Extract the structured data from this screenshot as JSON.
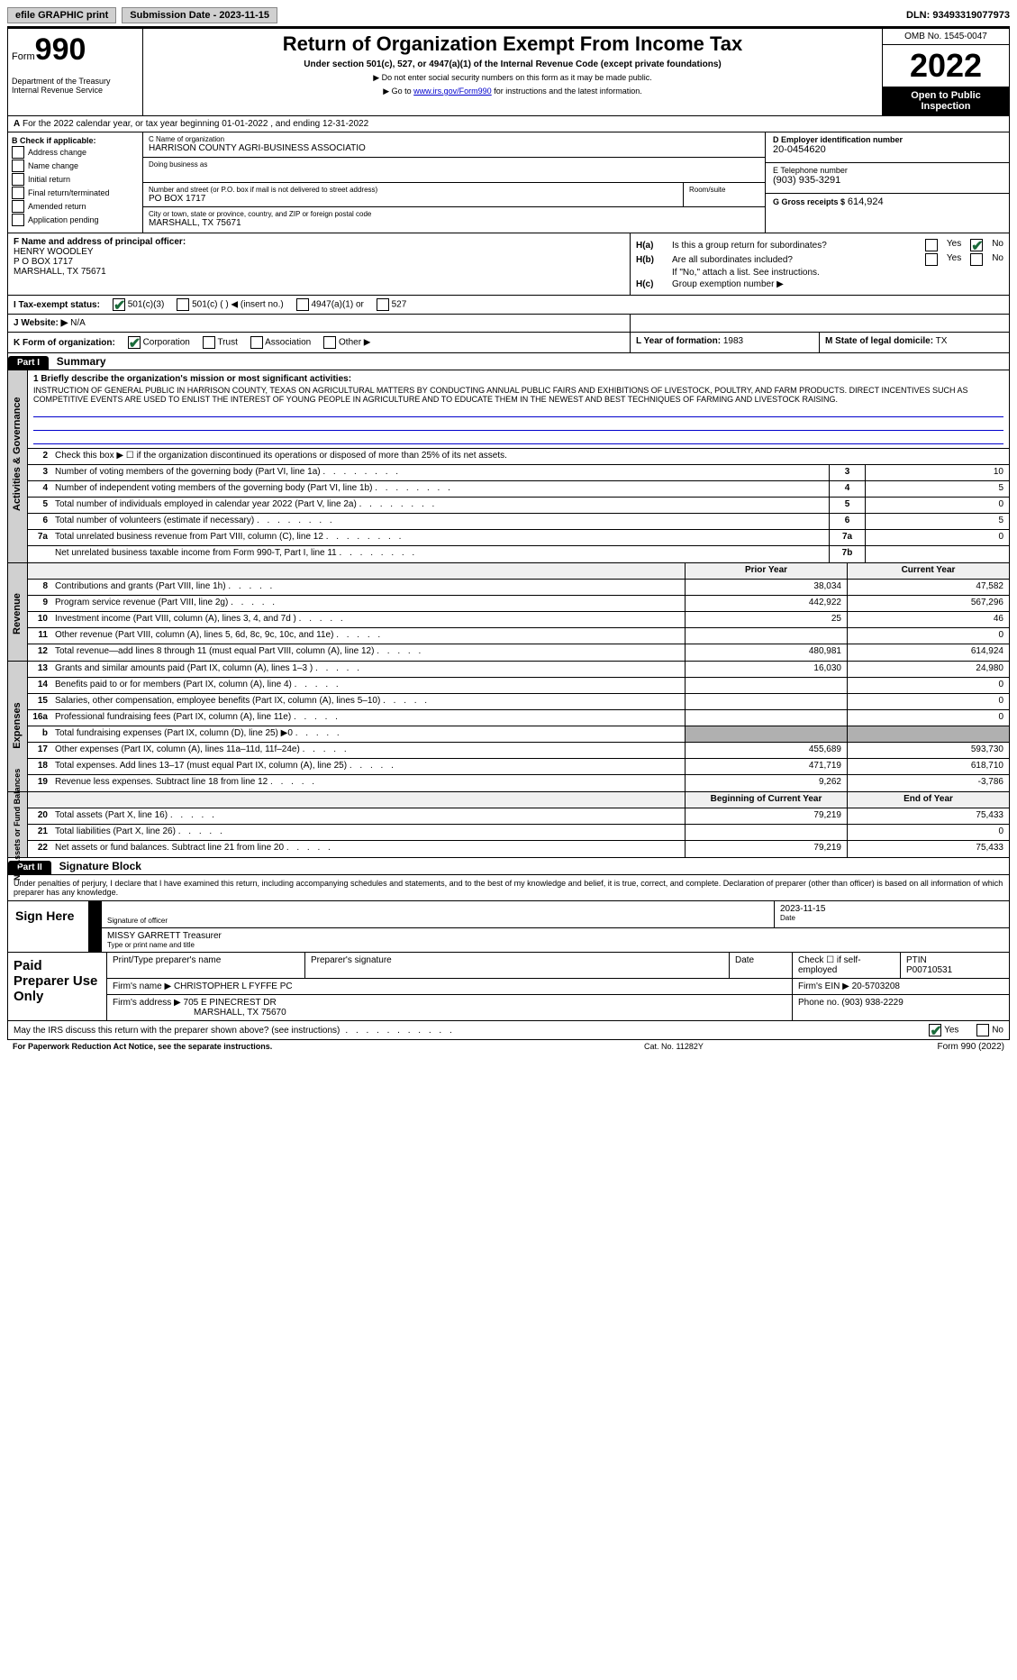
{
  "topbar": {
    "efile": "efile GRAPHIC print",
    "submission_label": "Submission Date - 2023-11-15",
    "dln_label": "DLN: 93493319077973"
  },
  "header": {
    "form_label": "Form",
    "form_num": "990",
    "dept": "Department of the Treasury\nInternal Revenue Service",
    "title": "Return of Organization Exempt From Income Tax",
    "subtitle": "Under section 501(c), 527, or 4947(a)(1) of the Internal Revenue Code (except private foundations)",
    "note1": "▶ Do not enter social security numbers on this form as it may be made public.",
    "note2_pre": "▶ Go to ",
    "note2_link": "www.irs.gov/Form990",
    "note2_post": " for instructions and the latest information.",
    "omb": "OMB No. 1545-0047",
    "year": "2022",
    "open": "Open to Public Inspection"
  },
  "row_a": {
    "label_a": "A",
    "text": "For the 2022 calendar year, or tax year beginning 01-01-2022   , and ending 12-31-2022"
  },
  "b": {
    "label": "B Check if applicable:",
    "items": [
      "Address change",
      "Name change",
      "Initial return",
      "Final return/terminated",
      "Amended return",
      "Application pending"
    ]
  },
  "c": {
    "name_lbl": "C Name of organization",
    "name": "HARRISON COUNTY AGRI-BUSINESS ASSOCIATIO",
    "dba_lbl": "Doing business as",
    "dba": "",
    "street_lbl": "Number and street (or P.O. box if mail is not delivered to street address)",
    "street": "PO BOX 1717",
    "room_lbl": "Room/suite",
    "room": "",
    "city_lbl": "City or town, state or province, country, and ZIP or foreign postal code",
    "city": "MARSHALL, TX  75671"
  },
  "d": {
    "ein_lbl": "D Employer identification number",
    "ein": "20-0454620",
    "phone_lbl": "E Telephone number",
    "phone": "(903) 935-3291",
    "gross_lbl": "G Gross receipts $",
    "gross": "614,924"
  },
  "f": {
    "lbl": "F  Name and address of principal officer:",
    "name": "HENRY WOODLEY",
    "addr1": "P O BOX 1717",
    "addr2": "MARSHALL, TX  75671"
  },
  "h": {
    "a_lbl": "H(a)",
    "a_txt": "Is this a group return for subordinates?",
    "b_lbl": "H(b)",
    "b_txt": "Are all subordinates included?",
    "b_note": "If \"No,\" attach a list. See instructions.",
    "c_lbl": "H(c)",
    "c_txt": "Group exemption number ▶",
    "yes": "Yes",
    "no": "No"
  },
  "i": {
    "lbl": "I  Tax-exempt status:",
    "opts": [
      "501(c)(3)",
      "501(c) (   ) ◀ (insert no.)",
      "4947(a)(1) or",
      "527"
    ]
  },
  "j": {
    "lbl": "J  Website: ▶",
    "val": "N/A"
  },
  "k": {
    "lbl": "K Form of organization:",
    "opts": [
      "Corporation",
      "Trust",
      "Association",
      "Other ▶"
    ]
  },
  "l": {
    "lbl": "L Year of formation:",
    "val": "1983"
  },
  "m": {
    "lbl": "M State of legal domicile:",
    "val": "TX"
  },
  "part1": {
    "head": "Part I",
    "title": "Summary"
  },
  "summary": {
    "vtabs": [
      "Activities & Governance",
      "Revenue",
      "Expenses",
      "Net Assets or Fund Balances"
    ],
    "mission_lbl": "1  Briefly describe the organization's mission or most significant activities:",
    "mission": "INSTRUCTION OF GENERAL PUBLIC IN HARRISON COUNTY, TEXAS ON AGRICULTURAL MATTERS BY CONDUCTING ANNUAL PUBLIC FAIRS AND EXHIBITIONS OF LIVESTOCK, POULTRY, AND FARM PRODUCTS. DIRECT INCENTIVES SUCH AS COMPETITIVE EVENTS ARE USED TO ENLIST THE INTEREST OF YOUNG PEOPLE IN AGRICULTURE AND TO EDUCATE THEM IN THE NEWEST AND BEST TECHNIQUES OF FARMING AND LIVESTOCK RAISING.",
    "line2": "Check this box ▶ ☐  if the organization discontinued its operations or disposed of more than 25% of its net assets.",
    "governance": [
      {
        "n": "3",
        "d": "Number of voting members of the governing body (Part VI, line 1a)",
        "bn": "3",
        "bv": "10"
      },
      {
        "n": "4",
        "d": "Number of independent voting members of the governing body (Part VI, line 1b)",
        "bn": "4",
        "bv": "5"
      },
      {
        "n": "5",
        "d": "Total number of individuals employed in calendar year 2022 (Part V, line 2a)",
        "bn": "5",
        "bv": "0"
      },
      {
        "n": "6",
        "d": "Total number of volunteers (estimate if necessary)",
        "bn": "6",
        "bv": "5"
      },
      {
        "n": "7a",
        "d": "Total unrelated business revenue from Part VIII, column (C), line 12",
        "bn": "7a",
        "bv": "0"
      },
      {
        "n": "",
        "d": "Net unrelated business taxable income from Form 990-T, Part I, line 11",
        "bn": "7b",
        "bv": ""
      }
    ],
    "head_prior": "Prior Year",
    "head_current": "Current Year",
    "revenue": [
      {
        "n": "8",
        "d": "Contributions and grants (Part VIII, line 1h)",
        "p": "38,034",
        "c": "47,582"
      },
      {
        "n": "9",
        "d": "Program service revenue (Part VIII, line 2g)",
        "p": "442,922",
        "c": "567,296"
      },
      {
        "n": "10",
        "d": "Investment income (Part VIII, column (A), lines 3, 4, and 7d )",
        "p": "25",
        "c": "46"
      },
      {
        "n": "11",
        "d": "Other revenue (Part VIII, column (A), lines 5, 6d, 8c, 9c, 10c, and 11e)",
        "p": "",
        "c": "0"
      },
      {
        "n": "12",
        "d": "Total revenue—add lines 8 through 11 (must equal Part VIII, column (A), line 12)",
        "p": "480,981",
        "c": "614,924"
      }
    ],
    "expenses": [
      {
        "n": "13",
        "d": "Grants and similar amounts paid (Part IX, column (A), lines 1–3 )",
        "p": "16,030",
        "c": "24,980"
      },
      {
        "n": "14",
        "d": "Benefits paid to or for members (Part IX, column (A), line 4)",
        "p": "",
        "c": "0"
      },
      {
        "n": "15",
        "d": "Salaries, other compensation, employee benefits (Part IX, column (A), lines 5–10)",
        "p": "",
        "c": "0"
      },
      {
        "n": "16a",
        "d": "Professional fundraising fees (Part IX, column (A), line 11e)",
        "p": "",
        "c": "0"
      },
      {
        "n": "b",
        "d": "Total fundraising expenses (Part IX, column (D), line 25) ▶0",
        "p": "GREY",
        "c": "GREY"
      },
      {
        "n": "17",
        "d": "Other expenses (Part IX, column (A), lines 11a–11d, 11f–24e)",
        "p": "455,689",
        "c": "593,730"
      },
      {
        "n": "18",
        "d": "Total expenses. Add lines 13–17 (must equal Part IX, column (A), line 25)",
        "p": "471,719",
        "c": "618,710"
      },
      {
        "n": "19",
        "d": "Revenue less expenses. Subtract line 18 from line 12",
        "p": "9,262",
        "c": "-3,786"
      }
    ],
    "head_begin": "Beginning of Current Year",
    "head_end": "End of Year",
    "balances": [
      {
        "n": "20",
        "d": "Total assets (Part X, line 16)",
        "p": "79,219",
        "c": "75,433"
      },
      {
        "n": "21",
        "d": "Total liabilities (Part X, line 26)",
        "p": "",
        "c": "0"
      },
      {
        "n": "22",
        "d": "Net assets or fund balances. Subtract line 21 from line 20",
        "p": "79,219",
        "c": "75,433"
      }
    ]
  },
  "part2": {
    "head": "Part II",
    "title": "Signature Block"
  },
  "sig": {
    "decl": "Under penalties of perjury, I declare that I have examined this return, including accompanying schedules and statements, and to the best of my knowledge and belief, it is true, correct, and complete. Declaration of preparer (other than officer) is based on all information of which preparer has any knowledge.",
    "here": "Sign Here",
    "sig_lbl": "Signature of officer",
    "date_lbl": "Date",
    "date": "2023-11-15",
    "name": "MISSY GARRETT Treasurer",
    "name_lbl": "Type or print name and title"
  },
  "prep": {
    "label": "Paid Preparer Use Only",
    "r1": {
      "c1": "Print/Type preparer's name",
      "c2": "Preparer's signature",
      "c3": "Date",
      "c4": "Check ☐ if self-employed",
      "c5": "PTIN",
      "c5v": "P00710531"
    },
    "r2": {
      "c1": "Firm's name   ▶",
      "c1v": "CHRISTOPHER L FYFFE PC",
      "c2": "Firm's EIN ▶",
      "c2v": "20-5703208"
    },
    "r3": {
      "c1": "Firm's address ▶",
      "c1v": "705 E PINECREST DR",
      "c1v2": "MARSHALL, TX  75670",
      "c2": "Phone no.",
      "c2v": "(903) 938-2229"
    }
  },
  "footer": {
    "discuss": "May the IRS discuss this return with the preparer shown above? (see instructions)",
    "yes": "Yes",
    "no": "No"
  },
  "footer2": {
    "l": "For Paperwork Reduction Act Notice, see the separate instructions.",
    "c": "Cat. No. 11282Y",
    "r": "Form 990 (2022)"
  },
  "colors": {
    "link": "#0000cc",
    "check": "#1a6b3a",
    "greycell": "#b0b0b0"
  }
}
